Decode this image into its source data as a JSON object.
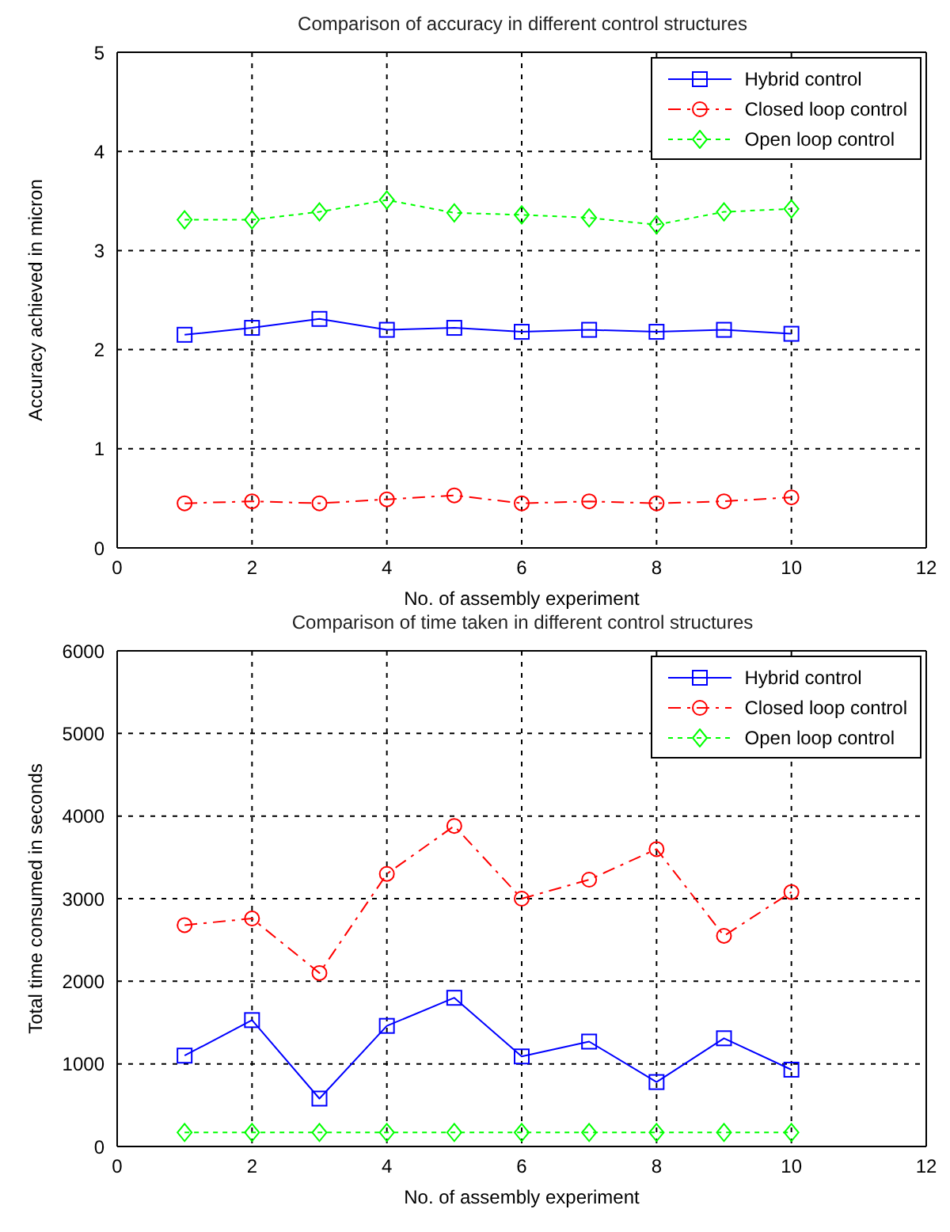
{
  "chart_data": [
    {
      "type": "line",
      "title": "Comparison of accuracy in different control structures",
      "xlabel": "No. of assembly experiment",
      "ylabel": "Accuracy achieved in micron",
      "x": [
        1,
        2,
        3,
        4,
        5,
        6,
        7,
        8,
        9,
        10
      ],
      "xlim": [
        0,
        12
      ],
      "xticks": [
        0,
        2,
        4,
        6,
        8,
        10,
        12
      ],
      "ylim": [
        0,
        5
      ],
      "yticks": [
        0,
        1,
        2,
        3,
        4,
        5
      ],
      "grid": true,
      "legend": "top right",
      "series": [
        {
          "name": "Hybrid control",
          "color": "#0000ff",
          "marker": "square",
          "line_style": "solid",
          "values": [
            2.15,
            2.22,
            2.31,
            2.2,
            2.22,
            2.18,
            2.2,
            2.18,
            2.2,
            2.16
          ]
        },
        {
          "name": "Closed loop control",
          "color": "#ff0000",
          "marker": "circle",
          "line_style": "dashed",
          "values": [
            0.45,
            0.47,
            0.45,
            0.49,
            0.53,
            0.45,
            0.47,
            0.45,
            0.47,
            0.51
          ]
        },
        {
          "name": "Open loop control",
          "color": "#00ff00",
          "marker": "diamond",
          "line_style": "dotted",
          "values": [
            3.31,
            3.31,
            3.39,
            3.51,
            3.38,
            3.36,
            3.33,
            3.26,
            3.39,
            3.42
          ]
        }
      ]
    },
    {
      "type": "line",
      "title": "Comparison of time taken in different control structures",
      "xlabel": "No. of assembly experiment",
      "ylabel": "Total time consumed in seconds",
      "x": [
        1,
        2,
        3,
        4,
        5,
        6,
        7,
        8,
        9,
        10
      ],
      "xlim": [
        0,
        12
      ],
      "xticks": [
        0,
        2,
        4,
        6,
        8,
        10,
        12
      ],
      "ylim": [
        0,
        6000
      ],
      "yticks": [
        0,
        1000,
        2000,
        3000,
        4000,
        5000,
        6000
      ],
      "grid": true,
      "legend": "top right",
      "series": [
        {
          "name": "Hybrid control",
          "color": "#0000ff",
          "marker": "square",
          "line_style": "solid",
          "values": [
            1100,
            1530,
            580,
            1460,
            1800,
            1090,
            1270,
            780,
            1310,
            930
          ]
        },
        {
          "name": "Closed loop control",
          "color": "#ff0000",
          "marker": "circle",
          "line_style": "dashed",
          "values": [
            2680,
            2760,
            2100,
            3300,
            3880,
            3000,
            3230,
            3600,
            2550,
            3080
          ]
        },
        {
          "name": "Open loop control",
          "color": "#00ff00",
          "marker": "diamond",
          "line_style": "dotted",
          "values": [
            170,
            170,
            170,
            170,
            170,
            170,
            170,
            170,
            170,
            170
          ]
        }
      ]
    }
  ]
}
